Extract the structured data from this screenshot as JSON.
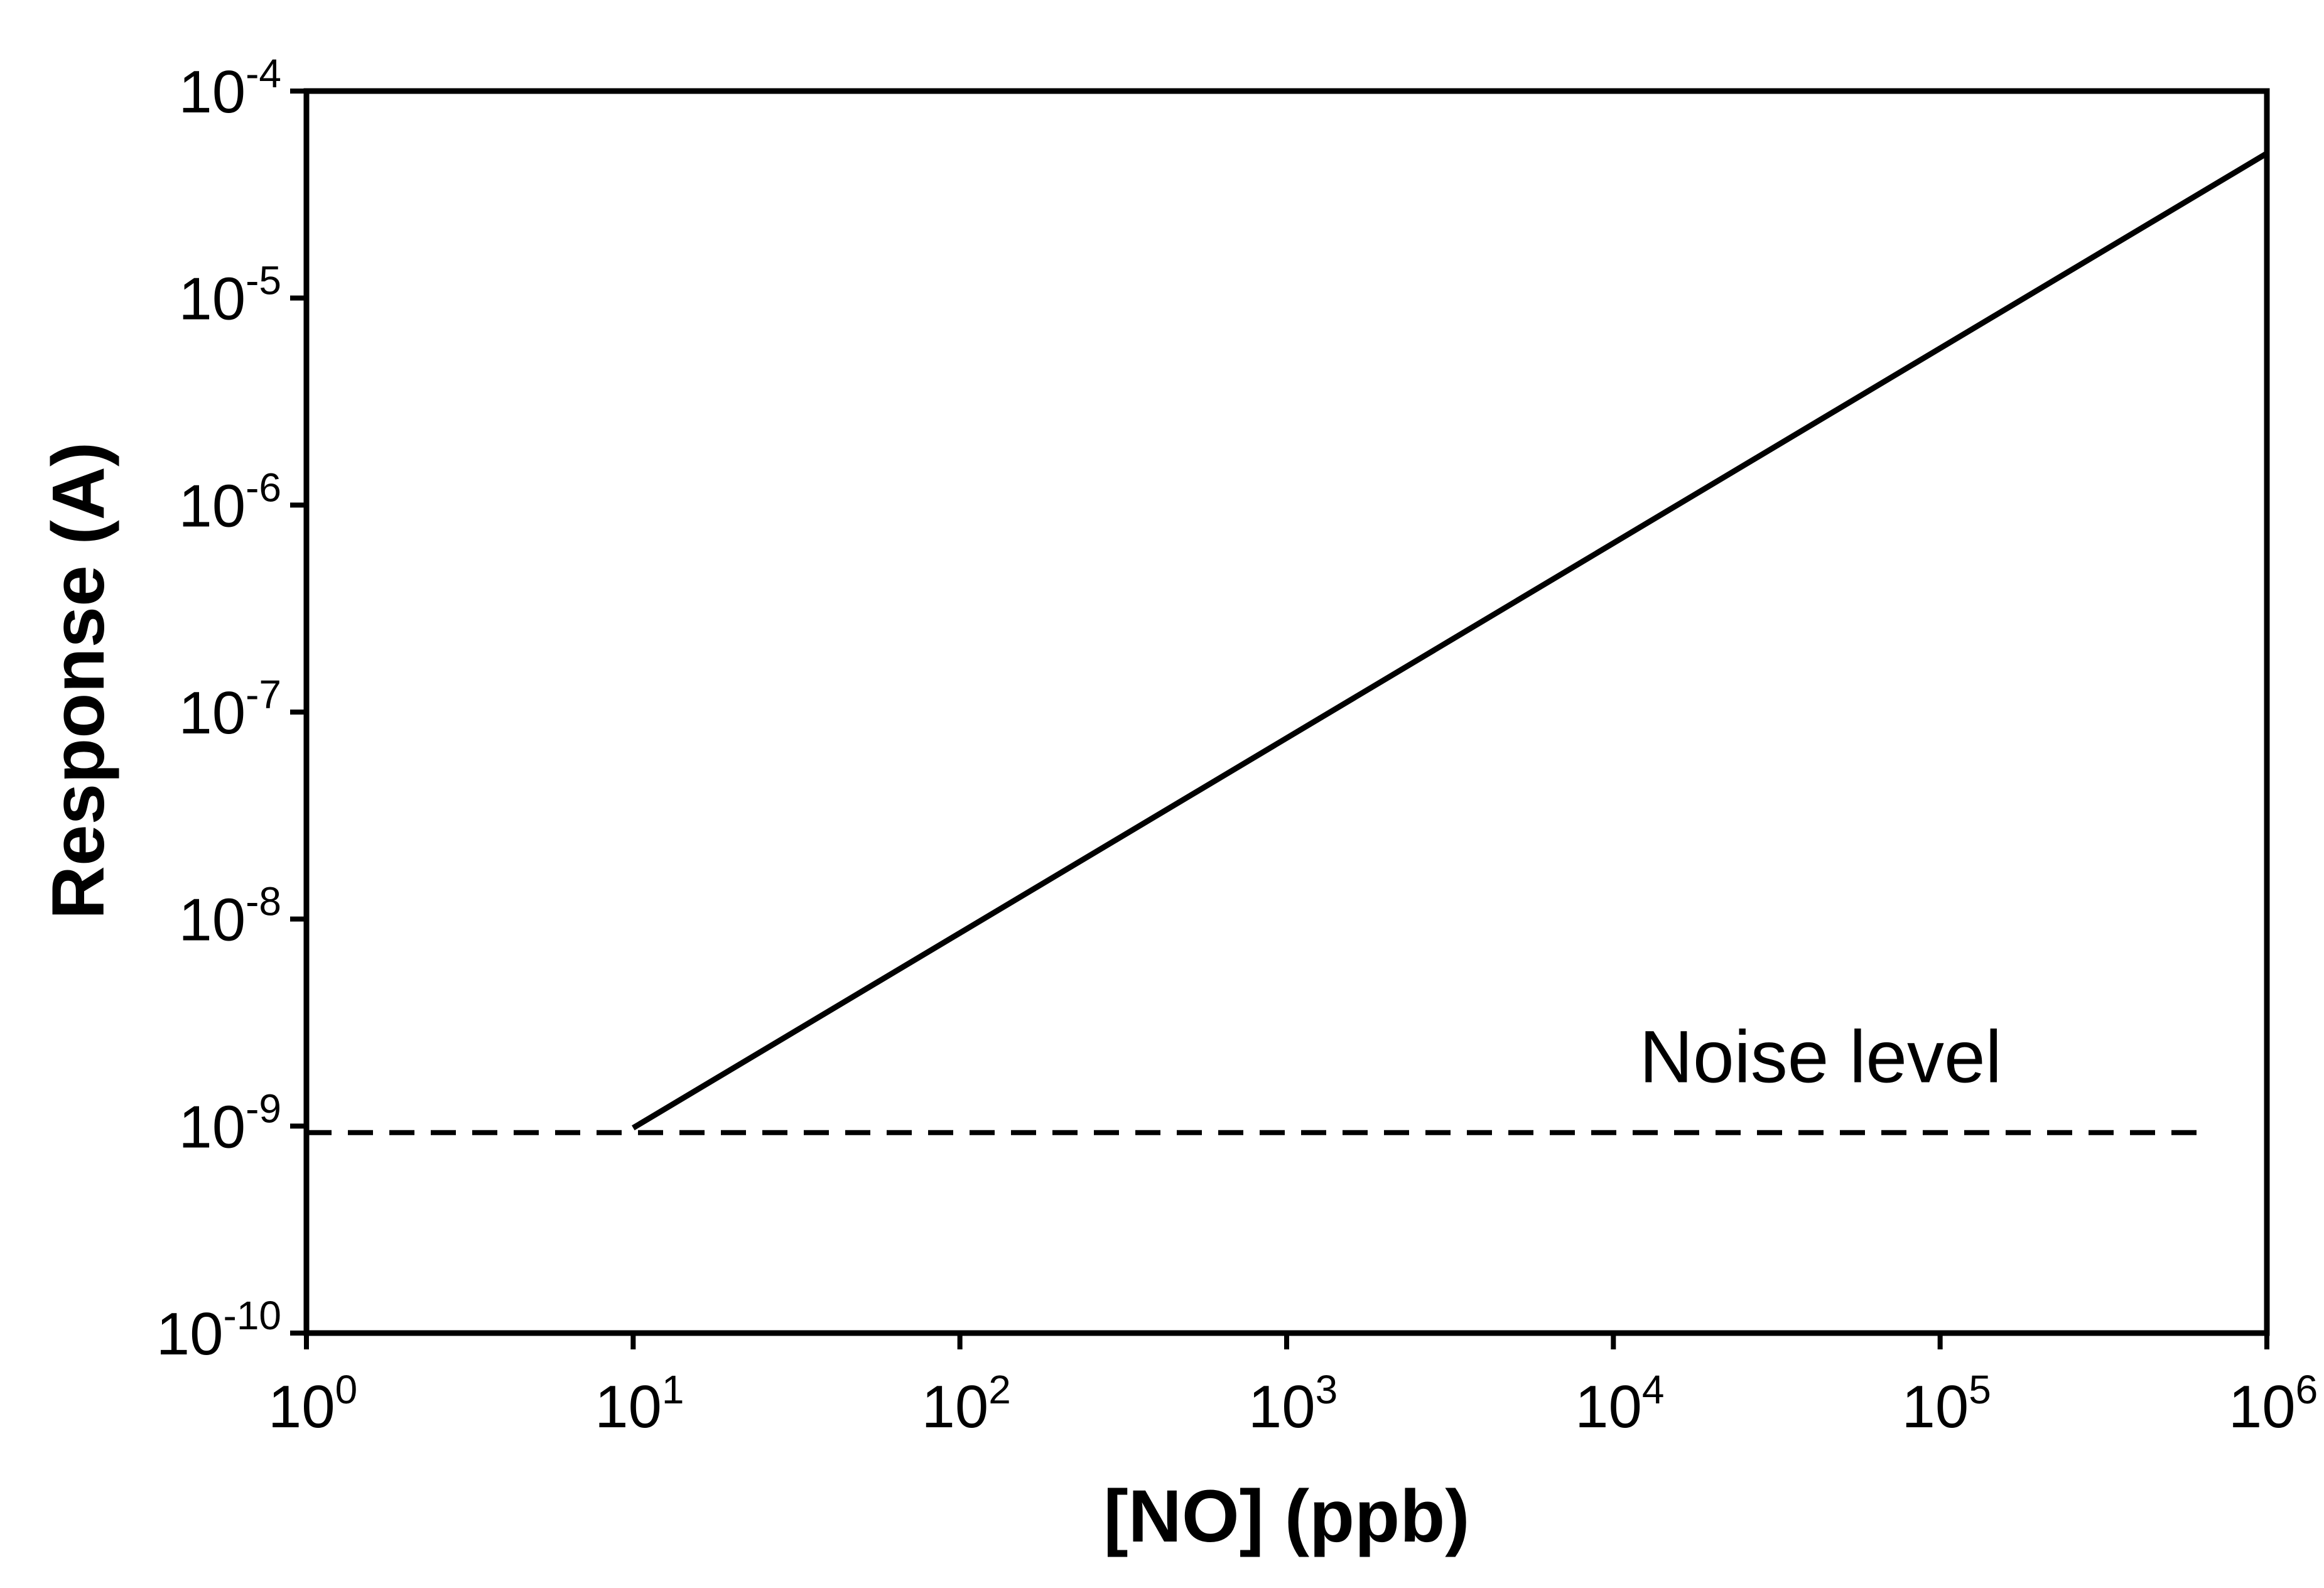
{
  "chart_data": {
    "type": "line",
    "xscale": "log",
    "yscale": "log",
    "xlabel": "[NO] (ppb)",
    "ylabel": "Response (A)",
    "xlim": [
      1,
      1000000
    ],
    "ylim": [
      1e-10,
      0.0001
    ],
    "grid": false,
    "x_ticks": [
      {
        "base": "10",
        "exp": "0",
        "value": 1
      },
      {
        "base": "10",
        "exp": "1",
        "value": 10
      },
      {
        "base": "10",
        "exp": "2",
        "value": 100
      },
      {
        "base": "10",
        "exp": "3",
        "value": 1000
      },
      {
        "base": "10",
        "exp": "4",
        "value": 10000
      },
      {
        "base": "10",
        "exp": "5",
        "value": 100000
      },
      {
        "base": "10",
        "exp": "6",
        "value": 1000000
      }
    ],
    "y_ticks": [
      {
        "base": "10",
        "exp": "-10",
        "value": 1e-10
      },
      {
        "base": "10",
        "exp": "-9",
        "value": 1e-09
      },
      {
        "base": "10",
        "exp": "-8",
        "value": 1e-08
      },
      {
        "base": "10",
        "exp": "-7",
        "value": 1e-07
      },
      {
        "base": "10",
        "exp": "-6",
        "value": 1e-06
      },
      {
        "base": "10",
        "exp": "-5",
        "value": 1e-05
      },
      {
        "base": "10",
        "exp": "-4",
        "value": 0.0001
      }
    ],
    "series": [
      {
        "style": "solid",
        "color": "#000000",
        "x": [
          10,
          1000000
        ],
        "y": [
          9.8e-10,
          5e-05
        ]
      }
    ],
    "reference_lines": [
      {
        "orientation": "horizontal",
        "style": "dashed",
        "color": "#000000",
        "y": 9.3e-10,
        "x_range": [
          1,
          650000
        ],
        "label": "Noise level"
      }
    ]
  }
}
